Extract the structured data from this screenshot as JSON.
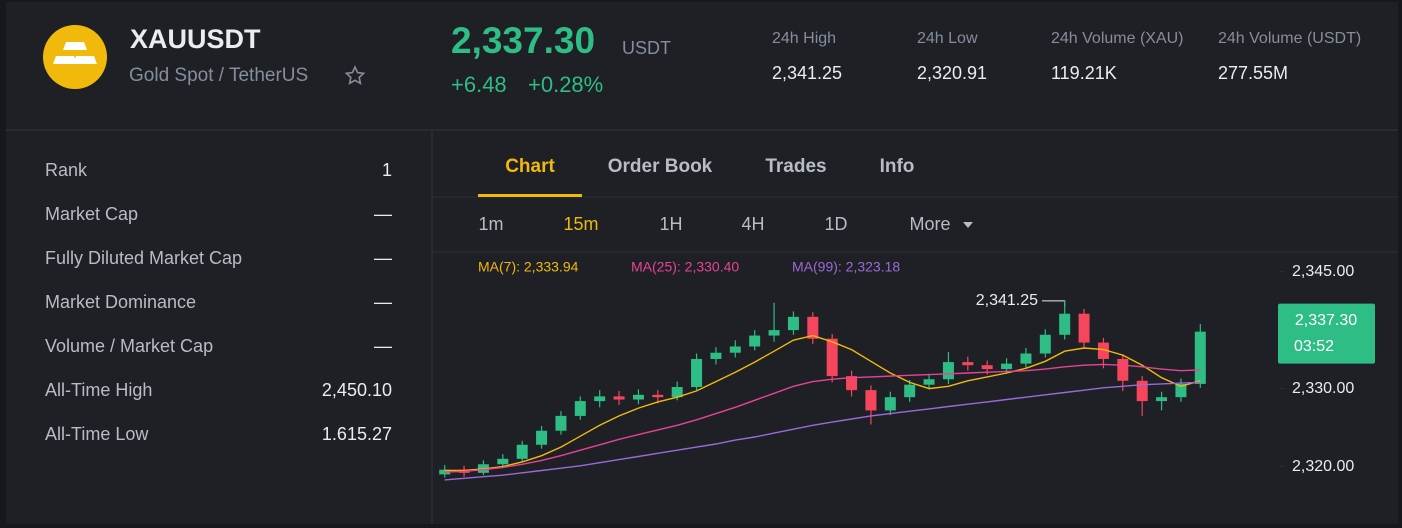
{
  "header": {
    "symbol": "XAUUSDT",
    "name": "Gold Spot / TetherUS",
    "price": "2,337.30",
    "quote": "USDT",
    "change": "+6.48",
    "change_pct": "+0.28%",
    "stats": [
      {
        "label": "24h High",
        "value": "2,341.25"
      },
      {
        "label": "24h Low",
        "value": "2,320.91"
      },
      {
        "label": "24h Volume (XAU)",
        "value": "119.21K"
      },
      {
        "label": "24h Volume (USDT)",
        "value": "277.55M"
      }
    ]
  },
  "sidebar": {
    "rows": [
      {
        "label": "Rank",
        "value": "1"
      },
      {
        "label": "Market Cap",
        "value": "—"
      },
      {
        "label": "Fully Diluted Market Cap",
        "value": "—"
      },
      {
        "label": "Market Dominance",
        "value": "—"
      },
      {
        "label": "Volume / Market Cap",
        "value": "—"
      },
      {
        "label": "All-Time High",
        "value": "2,450.10"
      },
      {
        "label": "All-Time Low",
        "value": "1.615.27"
      }
    ]
  },
  "tabs": [
    "Chart",
    "Order Book",
    "Trades",
    "Info"
  ],
  "intervals": [
    "1m",
    "15m",
    "1H",
    "4H",
    "1D",
    "More"
  ],
  "chart_data": {
    "type": "candlestick",
    "ylim": [
      2317,
      2347
    ],
    "yticks": [
      {
        "value": 2345,
        "label": "2,345.00"
      },
      {
        "value": 2330,
        "label": "2,330.00"
      },
      {
        "value": 2320,
        "label": "2,320.00"
      }
    ],
    "up_color": "#2ebd85",
    "down_color": "#f6465d",
    "open": [
      2319.0,
      2319.6,
      2319.2,
      2320.3,
      2321.0,
      2322.8,
      2324.6,
      2326.5,
      2328.4,
      2329.0,
      2328.6,
      2329.2,
      2328.9,
      2330.2,
      2333.8,
      2334.6,
      2335.4,
      2336.8,
      2337.5,
      2339.2,
      2336.4,
      2331.6,
      2329.8,
      2327.2,
      2328.9,
      2330.5,
      2331.2,
      2333.4,
      2333.0,
      2332.5,
      2333.2,
      2334.5,
      2336.9,
      2339.6,
      2335.9,
      2333.8,
      2331.0,
      2328.4,
      2328.9,
      2330.6
    ],
    "high": [
      2320.2,
      2320.1,
      2320.8,
      2321.6,
      2323.3,
      2325.2,
      2327.1,
      2329.0,
      2329.8,
      2329.7,
      2329.9,
      2329.8,
      2330.9,
      2334.5,
      2335.3,
      2336.2,
      2337.5,
      2341.0,
      2339.9,
      2339.8,
      2337.0,
      2332.3,
      2330.4,
      2329.6,
      2331.1,
      2331.9,
      2334.7,
      2334.1,
      2333.6,
      2333.9,
      2335.2,
      2337.6,
      2341.25,
      2340.2,
      2336.5,
      2334.4,
      2331.6,
      2329.6,
      2331.3,
      2338.3
    ],
    "low": [
      2318.6,
      2318.7,
      2318.9,
      2319.9,
      2320.6,
      2322.3,
      2324.1,
      2326.0,
      2327.6,
      2327.9,
      2328.0,
      2328.1,
      2328.5,
      2329.8,
      2333.1,
      2334.0,
      2334.9,
      2336.0,
      2336.9,
      2335.7,
      2330.8,
      2329.0,
      2325.4,
      2326.6,
      2328.3,
      2329.9,
      2330.6,
      2332.3,
      2331.8,
      2331.9,
      2332.7,
      2334.0,
      2336.3,
      2335.2,
      2332.6,
      2329.7,
      2326.5,
      2327.2,
      2328.3,
      2330.1
    ],
    "close": [
      2319.6,
      2319.2,
      2320.3,
      2321.0,
      2322.8,
      2324.6,
      2326.5,
      2328.4,
      2329.0,
      2328.6,
      2329.2,
      2328.9,
      2330.2,
      2333.8,
      2334.6,
      2335.4,
      2336.8,
      2337.5,
      2339.2,
      2336.4,
      2331.6,
      2329.8,
      2327.2,
      2328.9,
      2330.5,
      2331.2,
      2333.4,
      2333.0,
      2332.5,
      2333.2,
      2334.5,
      2336.9,
      2339.6,
      2335.9,
      2333.8,
      2331.0,
      2328.4,
      2328.9,
      2330.6,
      2337.3
    ],
    "series": [
      {
        "name": "MA(7): 2,333.94",
        "color": "#f0b90b",
        "values": [
          2319.5,
          2319.5,
          2319.7,
          2320.0,
          2320.6,
          2321.4,
          2322.5,
          2323.9,
          2325.3,
          2326.5,
          2327.5,
          2328.3,
          2328.9,
          2329.7,
          2330.9,
          2332.1,
          2333.4,
          2334.8,
          2336.2,
          2336.8,
          2336.0,
          2335.0,
          2333.5,
          2332.0,
          2330.8,
          2330.0,
          2330.3,
          2331.0,
          2331.5,
          2332.0,
          2332.6,
          2333.5,
          2334.8,
          2335.2,
          2335.0,
          2334.3,
          2333.0,
          2331.4,
          2330.3,
          2331.0
        ]
      },
      {
        "name": "MA(25): 2,330.40",
        "color": "#e84393",
        "values": [
          2319.3,
          2319.4,
          2319.6,
          2319.9,
          2320.3,
          2320.8,
          2321.4,
          2322.1,
          2322.8,
          2323.5,
          2324.1,
          2324.7,
          2325.3,
          2326.0,
          2326.8,
          2327.6,
          2328.5,
          2329.4,
          2330.3,
          2330.9,
          2331.2,
          2331.4,
          2331.5,
          2331.6,
          2331.7,
          2331.8,
          2331.9,
          2332.0,
          2332.1,
          2332.2,
          2332.3,
          2332.5,
          2332.8,
          2333.0,
          2333.1,
          2333.0,
          2332.8,
          2332.5,
          2332.3,
          2332.4
        ]
      },
      {
        "name": "MA(99): 2,323.18",
        "color": "#9b6ad6",
        "values": [
          2318.3,
          2318.5,
          2318.7,
          2318.9,
          2319.2,
          2319.5,
          2319.8,
          2320.1,
          2320.5,
          2320.9,
          2321.3,
          2321.7,
          2322.1,
          2322.5,
          2322.9,
          2323.4,
          2323.8,
          2324.3,
          2324.8,
          2325.3,
          2325.7,
          2326.1,
          2326.5,
          2326.8,
          2327.1,
          2327.4,
          2327.7,
          2328.0,
          2328.3,
          2328.6,
          2328.9,
          2329.2,
          2329.5,
          2329.8,
          2330.1,
          2330.3,
          2330.5,
          2330.6,
          2330.7,
          2330.8
        ]
      }
    ],
    "high_annotation": {
      "value": 2341.25,
      "label": "2,341.25"
    },
    "last_price": {
      "value": 2337.3,
      "label": "2,337.30"
    },
    "countdown": "03:52"
  }
}
